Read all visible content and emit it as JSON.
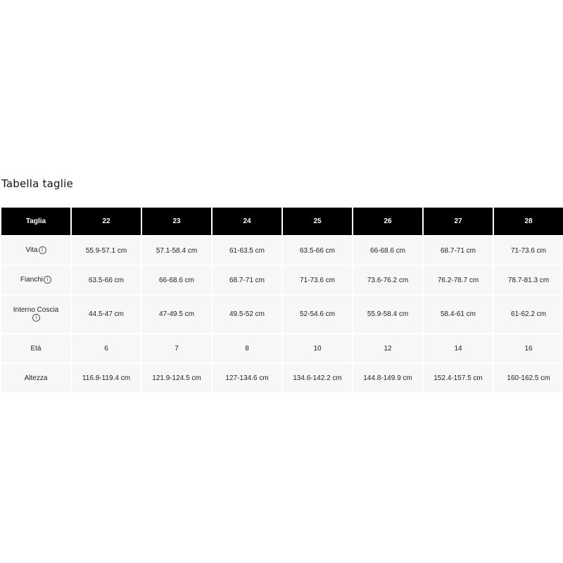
{
  "title": "Tabella taglie",
  "table": {
    "header": [
      "Taglia",
      "22",
      "23",
      "24",
      "25",
      "26",
      "27",
      "28"
    ],
    "rows": [
      {
        "label": "Vita",
        "info": true,
        "values": [
          "55.9-57.1 cm",
          "57.1-58.4 cm",
          "61-63.5 cm",
          "63.5-66 cm",
          "66-68.6 cm",
          "68.7-71 cm",
          "71-73.6 cm"
        ]
      },
      {
        "label": "Fianchi",
        "info": true,
        "values": [
          "63.5-66 cm",
          "66-68.6 cm",
          "68.7-71 cm",
          "71-73.6 cm",
          "73.6-76.2 cm",
          "76.2-78.7 cm",
          "78.7-81.3 cm"
        ]
      },
      {
        "label": "Interno Coscia",
        "info": true,
        "values": [
          "44.5-47 cm",
          "47-49.5 cm",
          "49.5-52 cm",
          "52-54.6 cm",
          "55.9-58.4 cm",
          "58.4-61 cm",
          "61-62.2 cm"
        ]
      },
      {
        "label": "Età",
        "info": false,
        "values": [
          "6",
          "7",
          "8",
          "10",
          "12",
          "14",
          "16"
        ]
      },
      {
        "label": "Altezza",
        "info": false,
        "values": [
          "116.8-119.4 cm",
          "121.9-124.5 cm",
          "127-134.6 cm",
          "134.6-142.2 cm",
          "144.8-149.9 cm",
          "152.4-157.5 cm",
          "160-162.5 cm"
        ]
      }
    ]
  },
  "icons": {
    "info": "info-circle-icon",
    "info_glyph": "i"
  }
}
